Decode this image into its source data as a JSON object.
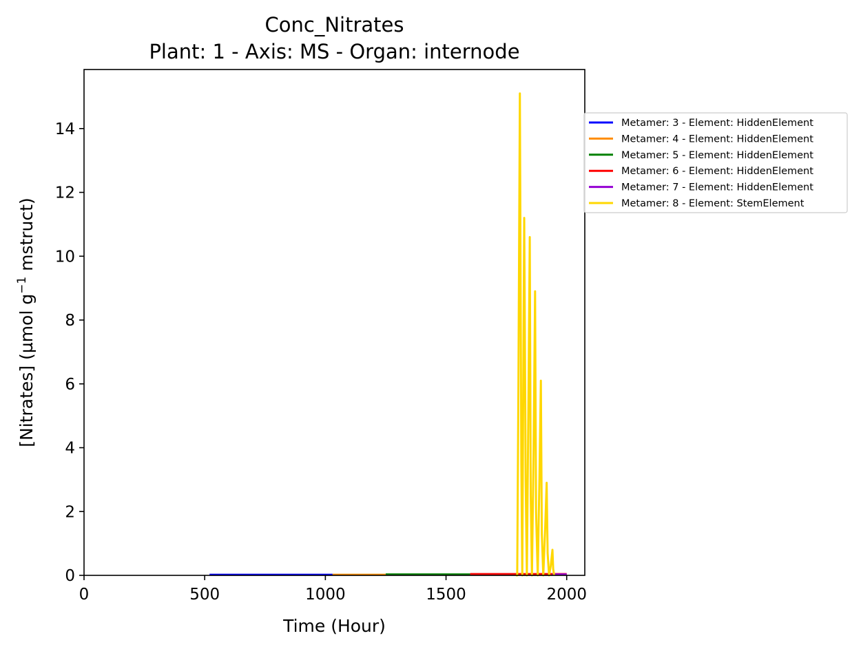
{
  "chart_data": {
    "type": "line",
    "title": "Conc_Nitrates",
    "subtitle": "Plant: 1 - Axis: MS - Organ: internode",
    "xlabel": "Time (Hour)",
    "ylabel_prefix": "[Nitrates] (µmol g",
    "ylabel_sup": "−1",
    "ylabel_suffix": " mstruct)",
    "xlim": [
      0,
      2075
    ],
    "ylim": [
      0,
      15.85
    ],
    "xticks": [
      0,
      500,
      1000,
      1500,
      2000
    ],
    "yticks": [
      0,
      2,
      4,
      6,
      8,
      10,
      12,
      14
    ],
    "legend_position": "outside-right-top",
    "grid": false,
    "series": [
      {
        "name": "Metamer: 3 - Element: HiddenElement",
        "color": "#0000ff",
        "x": [
          520,
          1030
        ],
        "y": [
          0.02,
          0.02
        ]
      },
      {
        "name": "Metamer: 4 - Element: HiddenElement",
        "color": "#ff8c00",
        "x": [
          1030,
          1250
        ],
        "y": [
          0.02,
          0.02
        ]
      },
      {
        "name": "Metamer: 5 - Element: HiddenElement",
        "color": "#008000",
        "x": [
          1250,
          1600
        ],
        "y": [
          0.03,
          0.03
        ]
      },
      {
        "name": "Metamer: 6 - Element: HiddenElement",
        "color": "#ff0000",
        "x": [
          1600,
          2000
        ],
        "y": [
          0.04,
          0.04
        ]
      },
      {
        "name": "Metamer: 7 - Element: HiddenElement",
        "color": "#9400d3",
        "x": [
          1940,
          2000
        ],
        "y": [
          0.03,
          0.03
        ]
      },
      {
        "name": "Metamer: 8 - Element: StemElement",
        "color": "#ffd700",
        "x": [
          1790,
          1795,
          1800,
          1806,
          1812,
          1816,
          1820,
          1824,
          1830,
          1835,
          1841,
          1847,
          1851,
          1856,
          1863,
          1869,
          1873,
          1880,
          1887,
          1893,
          1897,
          1903,
          1911,
          1917,
          1921,
          1927,
          1934,
          1941,
          1944,
          1948
        ],
        "y": [
          0,
          0,
          6.0,
          15.1,
          3.5,
          0,
          6.0,
          11.2,
          3.0,
          0,
          5.0,
          10.6,
          2.5,
          0,
          4.0,
          8.9,
          2.0,
          0,
          3.0,
          6.1,
          1.3,
          0,
          1.5,
          2.9,
          0.7,
          0,
          0.3,
          0.8,
          0.2,
          0
        ]
      }
    ]
  }
}
